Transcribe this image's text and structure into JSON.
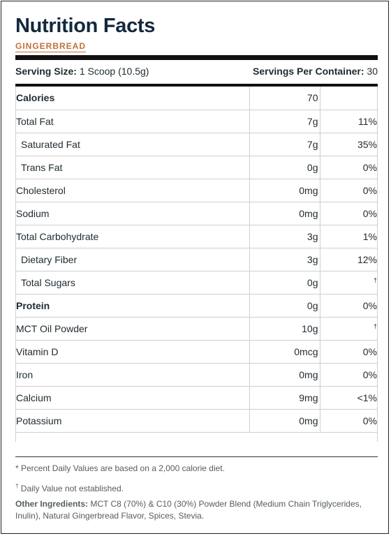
{
  "title": "Nutrition Facts",
  "flavor": "GINGERBREAD",
  "serving": {
    "size_label": "Serving Size:",
    "size_value": "1 Scoop (10.5g)",
    "per_container_label": "Servings Per Container:",
    "per_container_value": "30"
  },
  "rows": [
    {
      "name": "Calories",
      "amount": "70",
      "dv": ""
    },
    {
      "name": "Total Fat",
      "amount": "7g",
      "dv": "11%"
    },
    {
      "name": "Saturated Fat",
      "amount": "7g",
      "dv": "35%"
    },
    {
      "name": "Trans Fat",
      "amount": "0g",
      "dv": "0%"
    },
    {
      "name": "Cholesterol",
      "amount": "0mg",
      "dv": "0%"
    },
    {
      "name": "Sodium",
      "amount": "0mg",
      "dv": "0%"
    },
    {
      "name": "Total Carbohydrate",
      "amount": "3g",
      "dv": "1%"
    },
    {
      "name": "Dietary Fiber",
      "amount": "3g",
      "dv": "12%"
    },
    {
      "name": "Total Sugars",
      "amount": "0g",
      "dv": "†"
    },
    {
      "name": "Protein",
      "amount": "0g",
      "dv": "0%"
    },
    {
      "name": "MCT Oil Powder",
      "amount": "10g",
      "dv": "†"
    },
    {
      "name": "Vitamin D",
      "amount": "0mcg",
      "dv": "0%"
    },
    {
      "name": "Iron",
      "amount": "0mg",
      "dv": "0%"
    },
    {
      "name": "Calcium",
      "amount": "9mg",
      "dv": "<1%"
    },
    {
      "name": "Potassium",
      "amount": "0mg",
      "dv": "0%"
    }
  ],
  "footnotes": {
    "percent_dv": "* Percent Daily Values are based on a 2,000 calorie diet.",
    "dagger_mark": "†",
    "dagger_text": "Daily Value not established.",
    "ingredients_label": "Other Ingredients:",
    "ingredients_text": "MCT C8 (70%) & C10 (30%) Powder Blend (Medium Chain Triglycerides, Inulin), Natural Gingerbread Flavor, Spices, Stevia."
  }
}
